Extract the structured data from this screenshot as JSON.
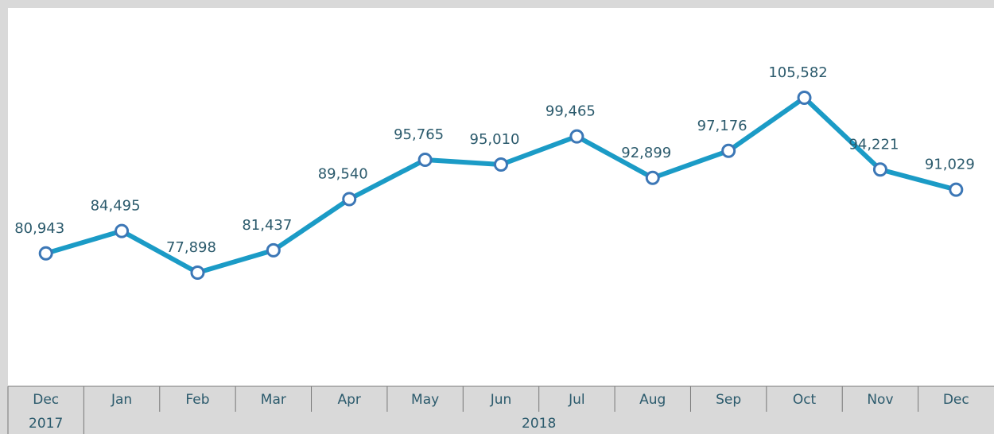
{
  "chart_data": {
    "type": "line",
    "categories": [
      "Dec",
      "Jan",
      "Feb",
      "Mar",
      "Apr",
      "May",
      "Jun",
      "Jul",
      "Aug",
      "Sep",
      "Oct",
      "Nov",
      "Dec"
    ],
    "year_labels": [
      "2017",
      "2018",
      null,
      null,
      null,
      null,
      null,
      null,
      null,
      null,
      null,
      null,
      null
    ],
    "series": [
      {
        "color": "#1b9bc6",
        "values": [
          80943,
          84495,
          77898,
          81437,
          89540,
          95765,
          95010,
          99465,
          92899,
          97176,
          105582,
          94221,
          91029
        ],
        "value_labels": [
          "80,943",
          "84,495",
          "77,898",
          "81,437",
          "89,540",
          "95,765",
          "95,010",
          "99,465",
          "92,899",
          "97,176",
          "105,582",
          "94,221",
          "91,029"
        ]
      }
    ]
  }
}
